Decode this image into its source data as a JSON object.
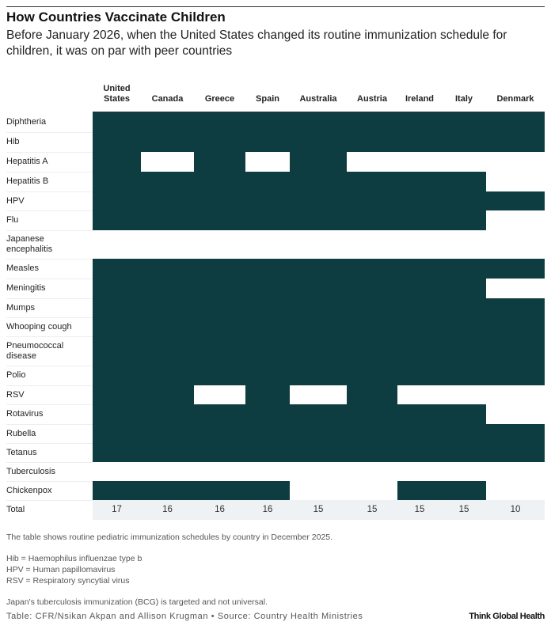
{
  "chart_data": {
    "type": "table",
    "title": "How Countries Vaccinate Children",
    "subtitle": "Before January 2026, when the United States changed its routine immunization schedule for children, it was on par with peer countries",
    "columns": [
      "United States",
      "Canada",
      "Greece",
      "Spain",
      "Australia",
      "Austria",
      "Ireland",
      "Italy",
      "Denmark"
    ],
    "rows": [
      {
        "label": "Diphtheria",
        "values": [
          1,
          1,
          1,
          1,
          1,
          1,
          1,
          1,
          1
        ]
      },
      {
        "label": "Hib",
        "values": [
          1,
          1,
          1,
          1,
          1,
          1,
          1,
          1,
          1
        ]
      },
      {
        "label": "Hepatitis A",
        "values": [
          1,
          0,
          1,
          0,
          1,
          0,
          0,
          0,
          0
        ]
      },
      {
        "label": "Hepatitis B",
        "values": [
          1,
          1,
          1,
          1,
          1,
          1,
          1,
          1,
          0
        ]
      },
      {
        "label": "HPV",
        "values": [
          1,
          1,
          1,
          1,
          1,
          1,
          1,
          1,
          1
        ]
      },
      {
        "label": "Flu",
        "values": [
          1,
          1,
          1,
          1,
          1,
          1,
          1,
          1,
          0
        ]
      },
      {
        "label": "Japanese encephalitis",
        "values": [
          0,
          0,
          0,
          0,
          0,
          0,
          0,
          0,
          0
        ]
      },
      {
        "label": "Measles",
        "values": [
          1,
          1,
          1,
          1,
          1,
          1,
          1,
          1,
          1
        ]
      },
      {
        "label": "Meningitis",
        "values": [
          1,
          1,
          1,
          1,
          1,
          1,
          1,
          1,
          0
        ]
      },
      {
        "label": "Mumps",
        "values": [
          1,
          1,
          1,
          1,
          1,
          1,
          1,
          1,
          1
        ]
      },
      {
        "label": "Whooping cough",
        "values": [
          1,
          1,
          1,
          1,
          1,
          1,
          1,
          1,
          1
        ]
      },
      {
        "label": "Pneumococcal disease",
        "values": [
          1,
          1,
          1,
          1,
          1,
          1,
          1,
          1,
          1
        ]
      },
      {
        "label": "Polio",
        "values": [
          1,
          1,
          1,
          1,
          1,
          1,
          1,
          1,
          1
        ]
      },
      {
        "label": "RSV",
        "values": [
          1,
          1,
          0,
          1,
          0,
          1,
          0,
          0,
          0
        ]
      },
      {
        "label": "Rotavirus",
        "values": [
          1,
          1,
          1,
          1,
          1,
          1,
          1,
          1,
          0
        ]
      },
      {
        "label": "Rubella",
        "values": [
          1,
          1,
          1,
          1,
          1,
          1,
          1,
          1,
          1
        ]
      },
      {
        "label": "Tetanus",
        "values": [
          1,
          1,
          1,
          1,
          1,
          1,
          1,
          1,
          1
        ]
      },
      {
        "label": "Tuberculosis",
        "values": [
          0,
          0,
          0,
          0,
          0,
          0,
          0,
          0,
          0
        ]
      },
      {
        "label": "Chickenpox",
        "values": [
          1,
          1,
          1,
          1,
          0,
          0,
          1,
          1,
          0
        ]
      }
    ],
    "total_label": "Total",
    "totals": [
      17,
      16,
      16,
      16,
      15,
      15,
      15,
      15,
      10
    ],
    "fill_color": "#0d3d40"
  },
  "notes": {
    "description": "The table shows routine pediatric immunization schedules by country in December 2025.",
    "abbr": [
      "Hib = Haemophilus influenzae type b",
      "HPV = Human papillomavirus",
      "RSV = Respiratory syncytial virus"
    ],
    "footnote": "Japan's tuberculosis immunization (BCG) is targeted and not universal."
  },
  "source": "Table: CFR/Nsikan Akpan and Allison Krugman • Source: Country Health Ministries",
  "brand": "Think Global Health"
}
